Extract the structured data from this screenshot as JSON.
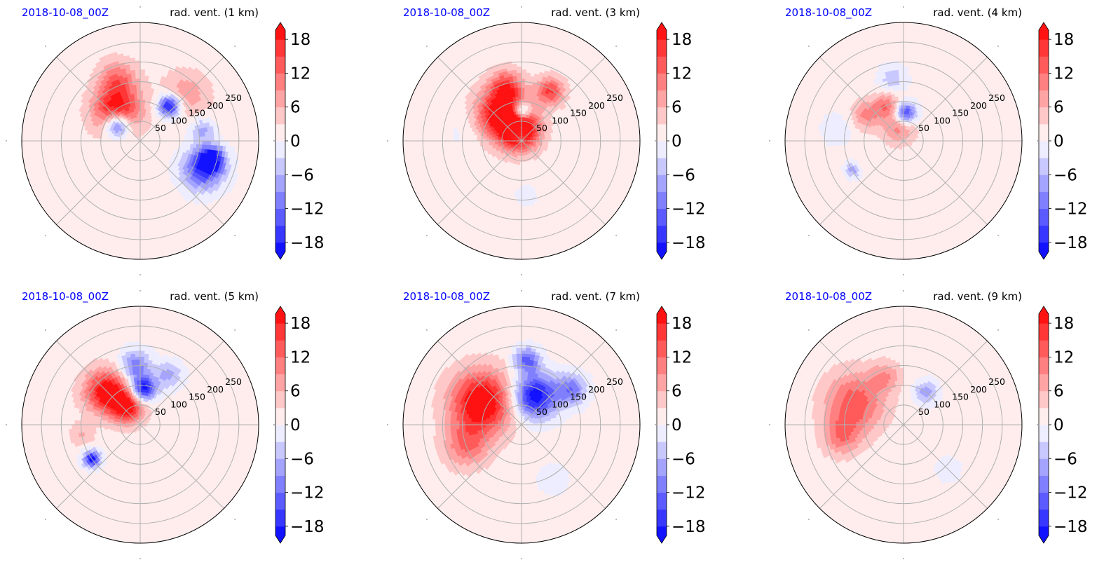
{
  "figure": {
    "date_color": "#0000ff",
    "colormap": "bwr",
    "colors": {
      "neg": "#0000ff",
      "mid": "#ffffff",
      "pos": "#ff0000"
    }
  },
  "chart_data": [
    {
      "type": "heatmap",
      "projection": "polar",
      "date": "2018-10-08_00Z",
      "title": "rad. vent. (1 km)",
      "radial_ticks": [
        "50",
        "100",
        "150",
        "200",
        "250"
      ],
      "blobs": [
        {
          "r": 95,
          "az": -38,
          "sr": 42,
          "sa": 42,
          "v": 20
        },
        {
          "r": 70,
          "az": -55,
          "sr": 25,
          "sa": 22,
          "v": -22
        },
        {
          "r": 165,
          "az": -20,
          "sr": 20,
          "sa": 50,
          "v": 10
        },
        {
          "r": 115,
          "az": 40,
          "sr": 20,
          "sa": 20,
          "v": -22
        },
        {
          "r": 165,
          "az": 45,
          "sr": 55,
          "sa": 30,
          "v": 7
        },
        {
          "r": 175,
          "az": 115,
          "sr": 30,
          "sa": 45,
          "v": -16
        },
        {
          "r": 185,
          "az": 105,
          "sr": 20,
          "sa": 25,
          "v": -20
        },
        {
          "r": 160,
          "az": 80,
          "sr": 25,
          "sa": 18,
          "v": -8
        }
      ]
    },
    {
      "type": "heatmap",
      "projection": "polar",
      "date": "2018-10-08_00Z",
      "title": "rad. vent. (3 km)",
      "radial_ticks": [
        "50",
        "100",
        "150",
        "200",
        "250"
      ],
      "blobs": [
        {
          "r": 85,
          "az": -35,
          "sr": 55,
          "sa": 35,
          "v": 22
        },
        {
          "r": 25,
          "az": -10,
          "sr": 25,
          "sa": 45,
          "v": 22
        },
        {
          "r": 145,
          "az": -15,
          "sr": 25,
          "sa": 30,
          "v": 12
        },
        {
          "r": 145,
          "az": 30,
          "sr": 25,
          "sa": 25,
          "v": 14
        },
        {
          "r": 75,
          "az": 0,
          "sr": 18,
          "sa": 15,
          "v": -20
        },
        {
          "r": 145,
          "az": -80,
          "sr": 40,
          "sa": 40,
          "v": -2
        },
        {
          "r": 140,
          "az": 175,
          "sr": 20,
          "sa": 20,
          "v": -3
        }
      ]
    },
    {
      "type": "heatmap",
      "projection": "polar",
      "date": "2018-10-08_00Z",
      "title": "rad. vent. (4 km)",
      "radial_ticks": [
        "50",
        "100",
        "150",
        "200",
        "250"
      ],
      "blobs": [
        {
          "r": 70,
          "az": 5,
          "sr": 20,
          "sa": 18,
          "v": -18
        },
        {
          "r": 100,
          "az": -25,
          "sr": 28,
          "sa": 15,
          "v": 10
        },
        {
          "r": 35,
          "az": -20,
          "sr": 18,
          "sa": 40,
          "v": 9
        },
        {
          "r": 115,
          "az": -55,
          "sr": 30,
          "sa": 22,
          "v": 9
        },
        {
          "r": 160,
          "az": -10,
          "sr": 30,
          "sa": 20,
          "v": -6
        },
        {
          "r": 150,
          "az": -120,
          "sr": 15,
          "sa": 12,
          "v": -8
        },
        {
          "r": 170,
          "az": -80,
          "sr": 40,
          "sa": 25,
          "v": -3
        }
      ]
    },
    {
      "type": "heatmap",
      "projection": "polar",
      "date": "2018-10-08_00Z",
      "title": "rad. vent. (5 km)",
      "radial_ticks": [
        "50",
        "100",
        "150",
        "200",
        "250"
      ],
      "blobs": [
        {
          "r": 120,
          "az": -45,
          "sr": 55,
          "sa": 22,
          "v": 20
        },
        {
          "r": 55,
          "az": -35,
          "sr": 35,
          "sa": 25,
          "v": 18
        },
        {
          "r": 90,
          "az": 5,
          "sr": 25,
          "sa": 20,
          "v": -22
        },
        {
          "r": 150,
          "az": -5,
          "sr": 30,
          "sa": 25,
          "v": -12
        },
        {
          "r": 145,
          "az": 30,
          "sr": 25,
          "sa": 25,
          "v": -8
        },
        {
          "r": 150,
          "az": -125,
          "sr": 18,
          "sa": 12,
          "v": -20
        },
        {
          "r": 150,
          "az": -100,
          "sr": 30,
          "sa": 15,
          "v": 5
        }
      ]
    },
    {
      "type": "heatmap",
      "projection": "polar",
      "date": "2018-10-08_00Z",
      "title": "rad. vent. (7 km)",
      "radial_ticks": [
        "50",
        "100",
        "150",
        "200",
        "250"
      ],
      "blobs": [
        {
          "r": 115,
          "az": -60,
          "sr": 65,
          "sa": 45,
          "v": 22
        },
        {
          "r": 150,
          "az": -110,
          "sr": 45,
          "sa": 35,
          "v": 10
        },
        {
          "r": 80,
          "az": 25,
          "sr": 55,
          "sa": 25,
          "v": -22
        },
        {
          "r": 155,
          "az": 55,
          "sr": 35,
          "sa": 20,
          "v": -12
        },
        {
          "r": 165,
          "az": 5,
          "sr": 25,
          "sa": 20,
          "v": -14
        },
        {
          "r": 160,
          "az": 150,
          "sr": 30,
          "sa": 30,
          "v": -3
        }
      ]
    },
    {
      "type": "heatmap",
      "projection": "polar",
      "date": "2018-10-08_00Z",
      "title": "rad. vent. (9 km)",
      "radial_ticks": [
        "50",
        "100",
        "150",
        "200",
        "250"
      ],
      "blobs": [
        {
          "r": 135,
          "az": -65,
          "sr": 65,
          "sa": 40,
          "v": 13
        },
        {
          "r": 160,
          "az": -100,
          "sr": 40,
          "sa": 30,
          "v": 9
        },
        {
          "r": 100,
          "az": 35,
          "sr": 22,
          "sa": 20,
          "v": -9
        },
        {
          "r": 130,
          "az": -20,
          "sr": 30,
          "sa": 22,
          "v": 7
        },
        {
          "r": 160,
          "az": 135,
          "sr": 35,
          "sa": 35,
          "v": -2
        }
      ]
    }
  ],
  "colorbar": {
    "ticks": [
      "18",
      "12",
      "6",
      "0",
      "−6",
      "−12",
      "−18"
    ],
    "tick_values": [
      18,
      12,
      6,
      0,
      -6,
      -12,
      -18
    ],
    "range": [
      -21,
      21
    ],
    "levels": 14,
    "extend": "both"
  }
}
